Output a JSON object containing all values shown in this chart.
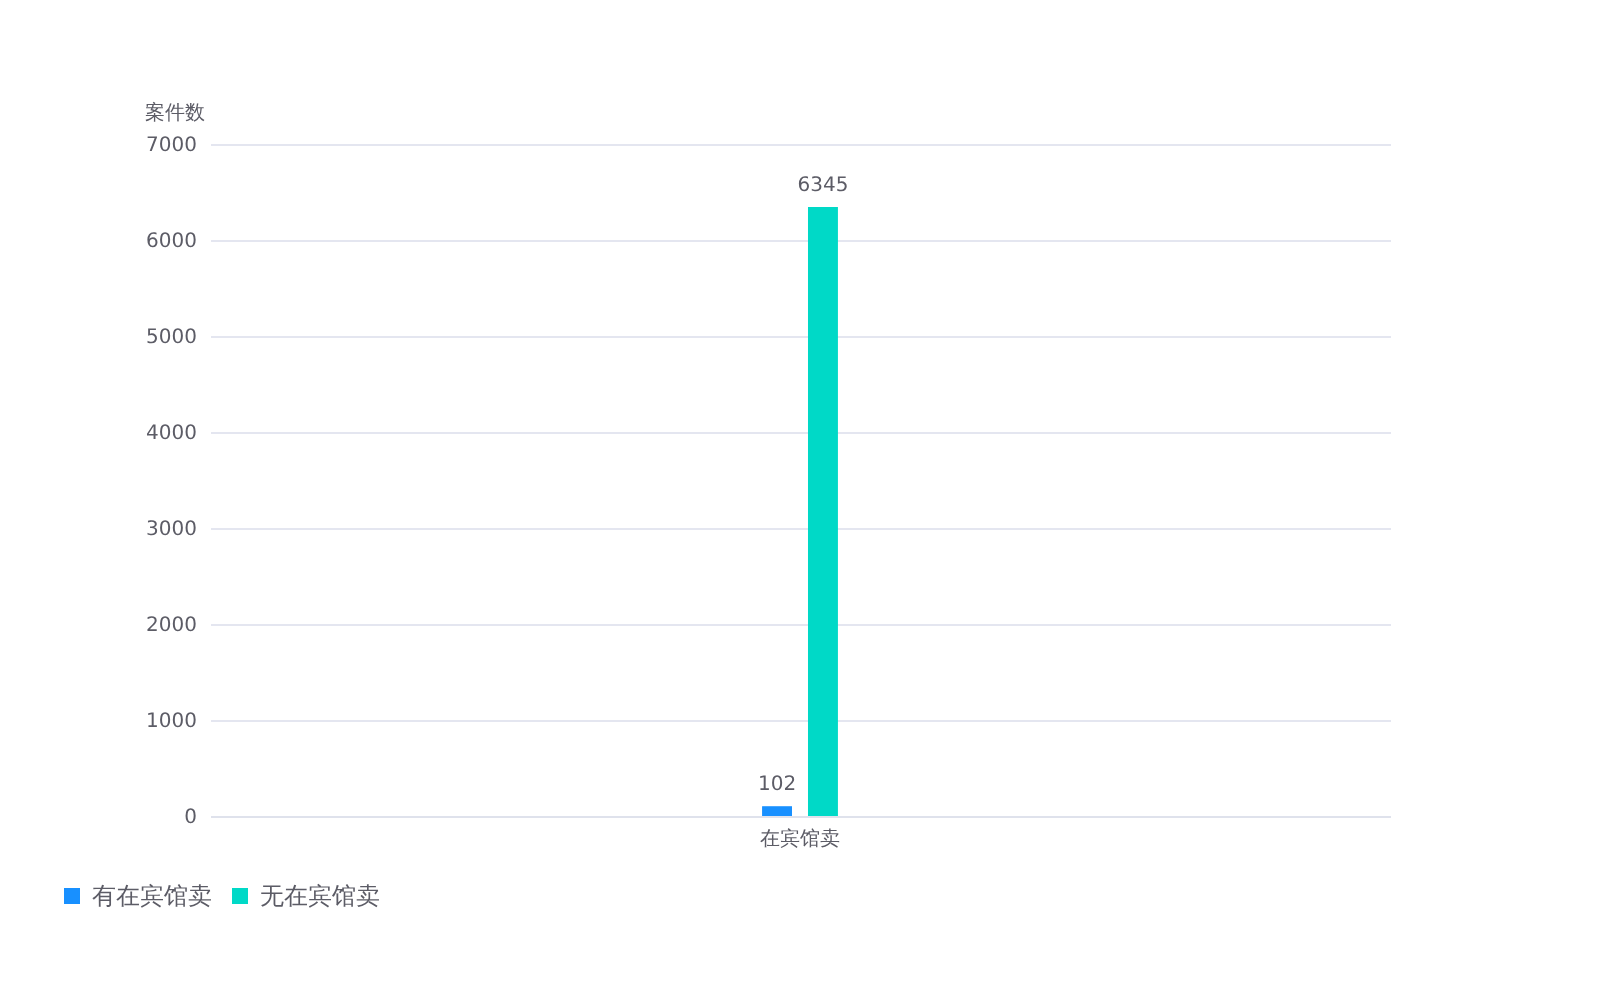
{
  "chart_data": {
    "type": "bar",
    "ylabel": "案件数",
    "categories": [
      "在宾馆卖"
    ],
    "series": [
      {
        "name": "有在宾馆卖",
        "color": "#1890ff",
        "values": [
          102
        ]
      },
      {
        "name": "无在宾馆卖",
        "color": "#00d9c7",
        "values": [
          6345
        ]
      }
    ],
    "ylim": [
      0,
      7000
    ],
    "yticks": [
      0,
      1000,
      2000,
      3000,
      4000,
      5000,
      6000,
      7000
    ],
    "grid": "y",
    "legend": "bottom left",
    "data_labels": true
  }
}
